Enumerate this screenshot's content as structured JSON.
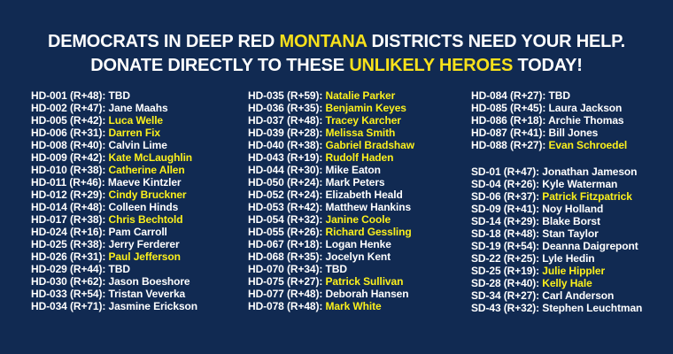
{
  "theme": {
    "background": "#112a52",
    "text_white": "#ffffff",
    "header_highlight_yellow": "#f8e11b",
    "name_highlight_yellow": "#fcf01c"
  },
  "header": {
    "line1": [
      {
        "text": "DEMOCRATS IN DEEP RED ",
        "highlight": false
      },
      {
        "text": "MONTANA",
        "highlight": true
      },
      {
        "text": " DISTRICTS NEED YOUR HELP.",
        "highlight": false
      }
    ],
    "line2": [
      {
        "text": "DONATE DIRECTLY TO THESE ",
        "highlight": false
      },
      {
        "text": "UNLIKELY HEROES",
        "highlight": true
      },
      {
        "text": " TODAY!",
        "highlight": false
      }
    ]
  },
  "columns": [
    {
      "groups": [
        {
          "entries": [
            {
              "district": "HD-001",
              "lean": "R+48",
              "name": "TBD",
              "highlighted": false
            },
            {
              "district": "HD-002",
              "lean": "R+47",
              "name": "Jane Maahs",
              "highlighted": false
            },
            {
              "district": "HD-005",
              "lean": "R+42",
              "name": "Luca Welle",
              "highlighted": true
            },
            {
              "district": "HD-006",
              "lean": "R+31",
              "name": "Darren Fix",
              "highlighted": true
            },
            {
              "district": "HD-008",
              "lean": "R+40",
              "name": "Calvin Lime",
              "highlighted": false
            },
            {
              "district": "HD-009",
              "lean": "R+42",
              "name": "Kate McLaughlin",
              "highlighted": true
            },
            {
              "district": "HD-010",
              "lean": "R+38",
              "name": "Catherine Allen",
              "highlighted": true
            },
            {
              "district": "HD-011",
              "lean": "R+46",
              "name": "Maeve Kintzler",
              "highlighted": false
            },
            {
              "district": "HD-012",
              "lean": "R+29",
              "name": "Cindy Bruckner",
              "highlighted": true
            },
            {
              "district": "HD-014",
              "lean": "R+48",
              "name": "Colleen Hinds",
              "highlighted": false
            },
            {
              "district": "HD-017",
              "lean": "R+38",
              "name": "Chris Bechtold",
              "highlighted": true
            },
            {
              "district": "HD-024",
              "lean": "R+16",
              "name": "Pam Carroll",
              "highlighted": false
            },
            {
              "district": "HD-025",
              "lean": "R+38",
              "name": "Jerry Ferderer",
              "highlighted": false
            },
            {
              "district": "HD-026",
              "lean": "R+31",
              "name": "Paul Jefferson",
              "highlighted": true
            },
            {
              "district": "HD-029",
              "lean": "R+44",
              "name": "TBD",
              "highlighted": false
            },
            {
              "district": "HD-030",
              "lean": "R+62",
              "name": "Jason Boeshore",
              "highlighted": false
            },
            {
              "district": "HD-033",
              "lean": "R+54",
              "name": "Tristan Veverka",
              "highlighted": false
            },
            {
              "district": "HD-034",
              "lean": "R+71",
              "name": "Jasmine Erickson",
              "highlighted": false
            }
          ]
        }
      ]
    },
    {
      "groups": [
        {
          "entries": [
            {
              "district": "HD-035",
              "lean": "R+59",
              "name": "Natalie Parker",
              "highlighted": true
            },
            {
              "district": "HD-036",
              "lean": "R+35",
              "name": "Benjamin Keyes",
              "highlighted": true
            },
            {
              "district": "HD-037",
              "lean": "R+48",
              "name": "Tracey Karcher",
              "highlighted": true
            },
            {
              "district": "HD-039",
              "lean": "R+28",
              "name": "Melissa Smith",
              "highlighted": true
            },
            {
              "district": "HD-040",
              "lean": "R+38",
              "name": "Gabriel Bradshaw",
              "highlighted": true
            },
            {
              "district": "HD-043",
              "lean": "R+19",
              "name": "Rudolf Haden",
              "highlighted": true
            },
            {
              "district": "HD-044",
              "lean": "R+30",
              "name": "Mike Eaton",
              "highlighted": false
            },
            {
              "district": "HD-050",
              "lean": "R+24",
              "name": "Mark Peters",
              "highlighted": false
            },
            {
              "district": "HD-052",
              "lean": "R+24",
              "name": "Elizabeth Heald",
              "highlighted": false
            },
            {
              "district": "HD-053",
              "lean": "R+42",
              "name": "Matthew Hankins",
              "highlighted": false
            },
            {
              "district": "HD-054",
              "lean": "R+32",
              "name": "Janine Coole",
              "highlighted": true
            },
            {
              "district": "HD-055",
              "lean": "R+26",
              "name": "Richard Gessling",
              "highlighted": true
            },
            {
              "district": "HD-067",
              "lean": "R+18",
              "name": "Logan Henke",
              "highlighted": false
            },
            {
              "district": "HD-068",
              "lean": "R+35",
              "name": "Jocelyn Kent",
              "highlighted": false
            },
            {
              "district": "HD-070",
              "lean": "R+34",
              "name": "TBD",
              "highlighted": false
            },
            {
              "district": "HD-075",
              "lean": "R+27",
              "name": "Patrick Sullivan",
              "highlighted": true
            },
            {
              "district": "HD-077",
              "lean": "R+48",
              "name": "Deborah Hansen",
              "highlighted": false
            },
            {
              "district": "HD-078",
              "lean": "R+48",
              "name": "Mark White",
              "highlighted": true
            }
          ]
        }
      ]
    },
    {
      "groups": [
        {
          "entries": [
            {
              "district": "HD-084",
              "lean": "R+27",
              "name": "TBD",
              "highlighted": false
            },
            {
              "district": "HD-085",
              "lean": "R+45",
              "name": "Laura Jackson",
              "highlighted": false
            },
            {
              "district": "HD-086",
              "lean": "R+18",
              "name": "Archie Thomas",
              "highlighted": false
            },
            {
              "district": "HD-087",
              "lean": "R+41",
              "name": "Bill Jones",
              "highlighted": false
            },
            {
              "district": "HD-088",
              "lean": "R+27",
              "name": "Evan Schroedel",
              "highlighted": true
            }
          ]
        },
        {
          "entries": [
            {
              "district": "SD-01",
              "lean": "R+47",
              "name": "Jonathan Jameson",
              "highlighted": false
            },
            {
              "district": "SD-04",
              "lean": "R+26",
              "name": "Kyle Waterman",
              "highlighted": false
            },
            {
              "district": "SD-06",
              "lean": "R+37",
              "name": "Patrick Fitzpatrick",
              "highlighted": true
            },
            {
              "district": "SD-09",
              "lean": "R+41",
              "name": "Noy Holland",
              "highlighted": false
            },
            {
              "district": "SD-14",
              "lean": "R+29",
              "name": "Blake Borst",
              "highlighted": false
            },
            {
              "district": "SD-18",
              "lean": "R+48",
              "name": "Stan Taylor",
              "highlighted": false
            },
            {
              "district": "SD-19",
              "lean": "R+54",
              "name": "Deanna Daigrepont",
              "highlighted": false
            },
            {
              "district": "SD-22",
              "lean": "R+25",
              "name": "Lyle Hedin",
              "highlighted": false
            },
            {
              "district": "SD-25",
              "lean": "R+19",
              "name": "Julie Hippler",
              "highlighted": true
            },
            {
              "district": "SD-28",
              "lean": "R+40",
              "name": "Kelly Hale",
              "highlighted": true
            },
            {
              "district": "SD-34",
              "lean": "R+27",
              "name": "Carl Anderson",
              "highlighted": false
            },
            {
              "district": "SD-43",
              "lean": "R+32",
              "name": "Stephen Leuchtman",
              "highlighted": false
            }
          ]
        }
      ]
    }
  ]
}
